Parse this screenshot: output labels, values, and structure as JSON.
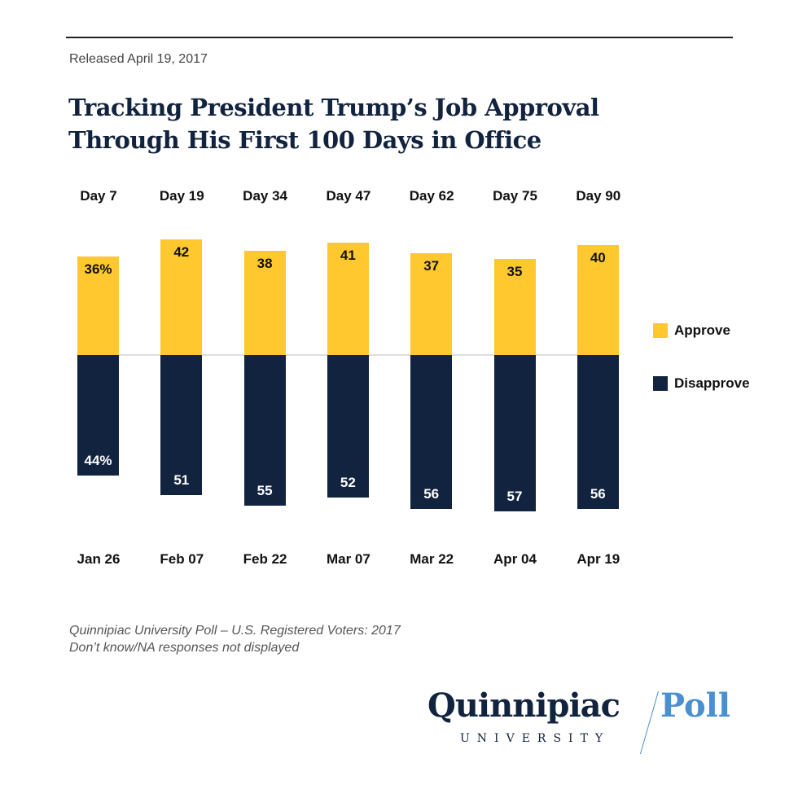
{
  "released": "Released April 19, 2017",
  "colors": {
    "approve": "#ffc82e",
    "disapprove": "#12233f"
  },
  "chart_data": {
    "type": "bar",
    "stacked": "diverging",
    "title": "Tracking President Trump’s Job Approval Through His First 100 Days in Office",
    "categories": [
      "Day 7",
      "Day 19",
      "Day 34",
      "Day 47",
      "Day 62",
      "Day 75",
      "Day 90"
    ],
    "dates": [
      "Jan 26",
      "Feb 07",
      "Feb 22",
      "Mar 07",
      "Mar 22",
      "Apr 04",
      "Apr 19"
    ],
    "series": [
      {
        "name": "Approve",
        "values": [
          36,
          42,
          38,
          41,
          37,
          35,
          40
        ],
        "labels": [
          "36%",
          "42",
          "38",
          "41",
          "37",
          "35",
          "40"
        ]
      },
      {
        "name": "Disapprove",
        "values": [
          44,
          51,
          55,
          52,
          56,
          57,
          56
        ],
        "labels": [
          "44%",
          "51",
          "55",
          "52",
          "56",
          "57",
          "56"
        ]
      }
    ],
    "legend": "right"
  },
  "footnotes": [
    "Quinnipiac University Poll – U.S. Registered Voters: 2017",
    "Don’t know/NA responses not displayed"
  ],
  "logo": {
    "name": "Quinnipiac",
    "sub": "UNIVERSITY",
    "poll": "Poll"
  }
}
